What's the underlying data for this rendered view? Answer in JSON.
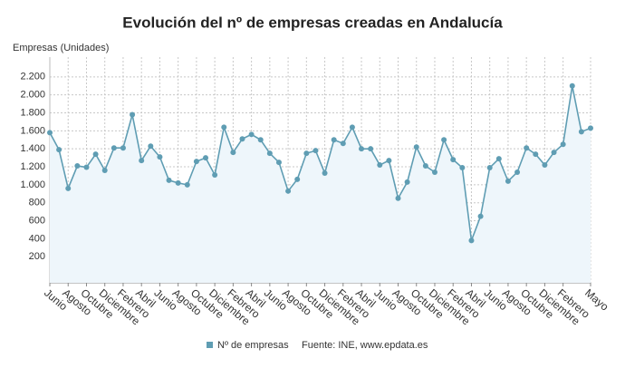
{
  "chart_data": {
    "type": "line",
    "title": "Evolución del nº de empresas creadas en Andalucía",
    "y_axis_label": "Empresas (Unidades)",
    "source": "Fuente: INE, www.epdata.es",
    "categories": [
      "Junio",
      null,
      "Agosto",
      null,
      "Octubre",
      null,
      "Diciembre",
      null,
      "Febrero",
      null,
      "Abril",
      null,
      "Junio",
      null,
      "Agosto",
      null,
      "Octubre",
      null,
      "Diciembre",
      null,
      "Febrero",
      null,
      "Abril",
      null,
      "Junio",
      null,
      "Agosto",
      null,
      "Octubre",
      null,
      "Diciembre",
      null,
      "Febrero",
      null,
      "Abril",
      null,
      "Junio",
      null,
      "Agosto",
      null,
      "Octubre",
      null,
      "Diciembre",
      null,
      "Febrero",
      null,
      "Abril",
      null,
      "Junio",
      null,
      "Agosto",
      null,
      "Octubre",
      null,
      "Diciembre",
      null,
      "Febrero",
      null,
      null,
      "Mayo"
    ],
    "series": [
      {
        "name": "Nº de empresas",
        "color": "#5f9db3",
        "values": [
          1580,
          1390,
          960,
          1210,
          1195,
          1340,
          1160,
          1410,
          1410,
          1780,
          1270,
          1430,
          1310,
          1050,
          1020,
          1000,
          1260,
          1300,
          1110,
          1640,
          1360,
          1510,
          1560,
          1500,
          1350,
          1250,
          930,
          1060,
          1350,
          1380,
          1130,
          1500,
          1460,
          1640,
          1400,
          1400,
          1220,
          1270,
          850,
          1030,
          1420,
          1210,
          1140,
          1500,
          1280,
          1190,
          380,
          650,
          1190,
          1290,
          1040,
          1140,
          1410,
          1340,
          1220,
          1360,
          1450,
          2100,
          1590,
          1630
        ]
      }
    ],
    "ylim": [
      -90,
      2420
    ],
    "yticks": [
      {
        "value": 200,
        "label": "200"
      },
      {
        "value": 400,
        "label": "400"
      },
      {
        "value": 600,
        "label": "600"
      },
      {
        "value": 800,
        "label": "800"
      },
      {
        "value": 1000,
        "label": "1.000"
      },
      {
        "value": 1200,
        "label": "1.200"
      },
      {
        "value": 1400,
        "label": "1.400"
      },
      {
        "value": 1600,
        "label": "1.600"
      },
      {
        "value": 1800,
        "label": "1.800"
      },
      {
        "value": 2000,
        "label": "2.000"
      },
      {
        "value": 2200,
        "label": "2.200"
      }
    ],
    "grid": true
  }
}
